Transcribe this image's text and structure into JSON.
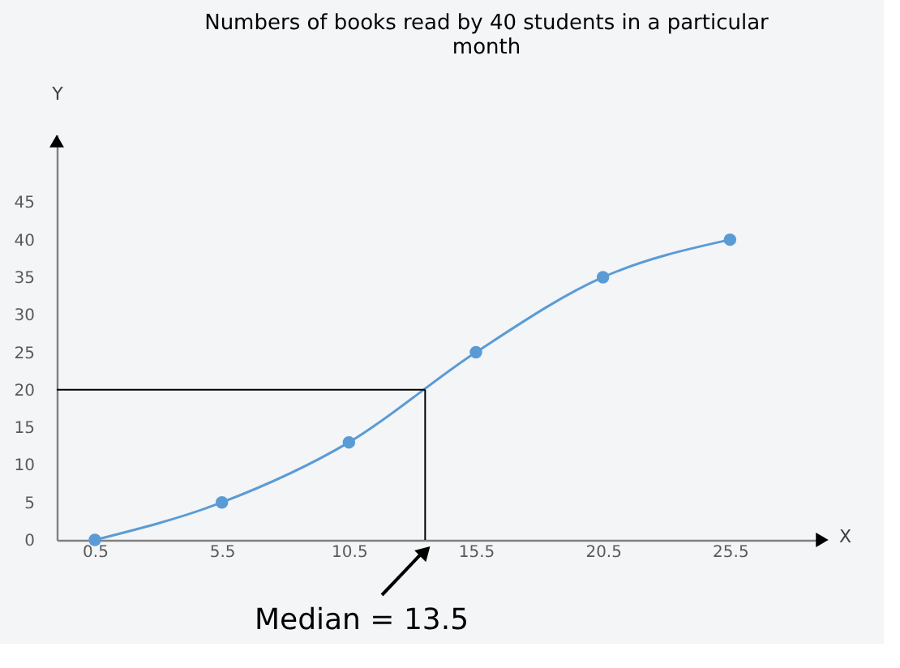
{
  "chart_data": {
    "type": "line",
    "title": "Numbers of books read by 40 students in a particular month",
    "xlabel": "X",
    "ylabel": "Y",
    "x": [
      0.5,
      5.5,
      10.5,
      15.5,
      20.5,
      25.5
    ],
    "series": [
      {
        "color": "#5b9bd5",
        "values": [
          0,
          5,
          13,
          25,
          35,
          40
        ]
      }
    ],
    "marker": "circle",
    "xlim": [
      -1,
      29
    ],
    "xticks": [
      0.5,
      5.5,
      10.5,
      15.5,
      20.5,
      25.5
    ],
    "ylim": [
      0,
      54
    ],
    "yticks": [
      0,
      5,
      10,
      15,
      20,
      25,
      30,
      35,
      40,
      45
    ],
    "grid": false,
    "ref_lines": [
      {
        "axis": "y",
        "value": 20,
        "color": "#000000"
      },
      {
        "axis": "x",
        "value": 13.5,
        "color": "#000000"
      }
    ],
    "annotations": [
      {
        "text": "Median = 13.5",
        "x": 13.5,
        "y": 0
      }
    ]
  }
}
